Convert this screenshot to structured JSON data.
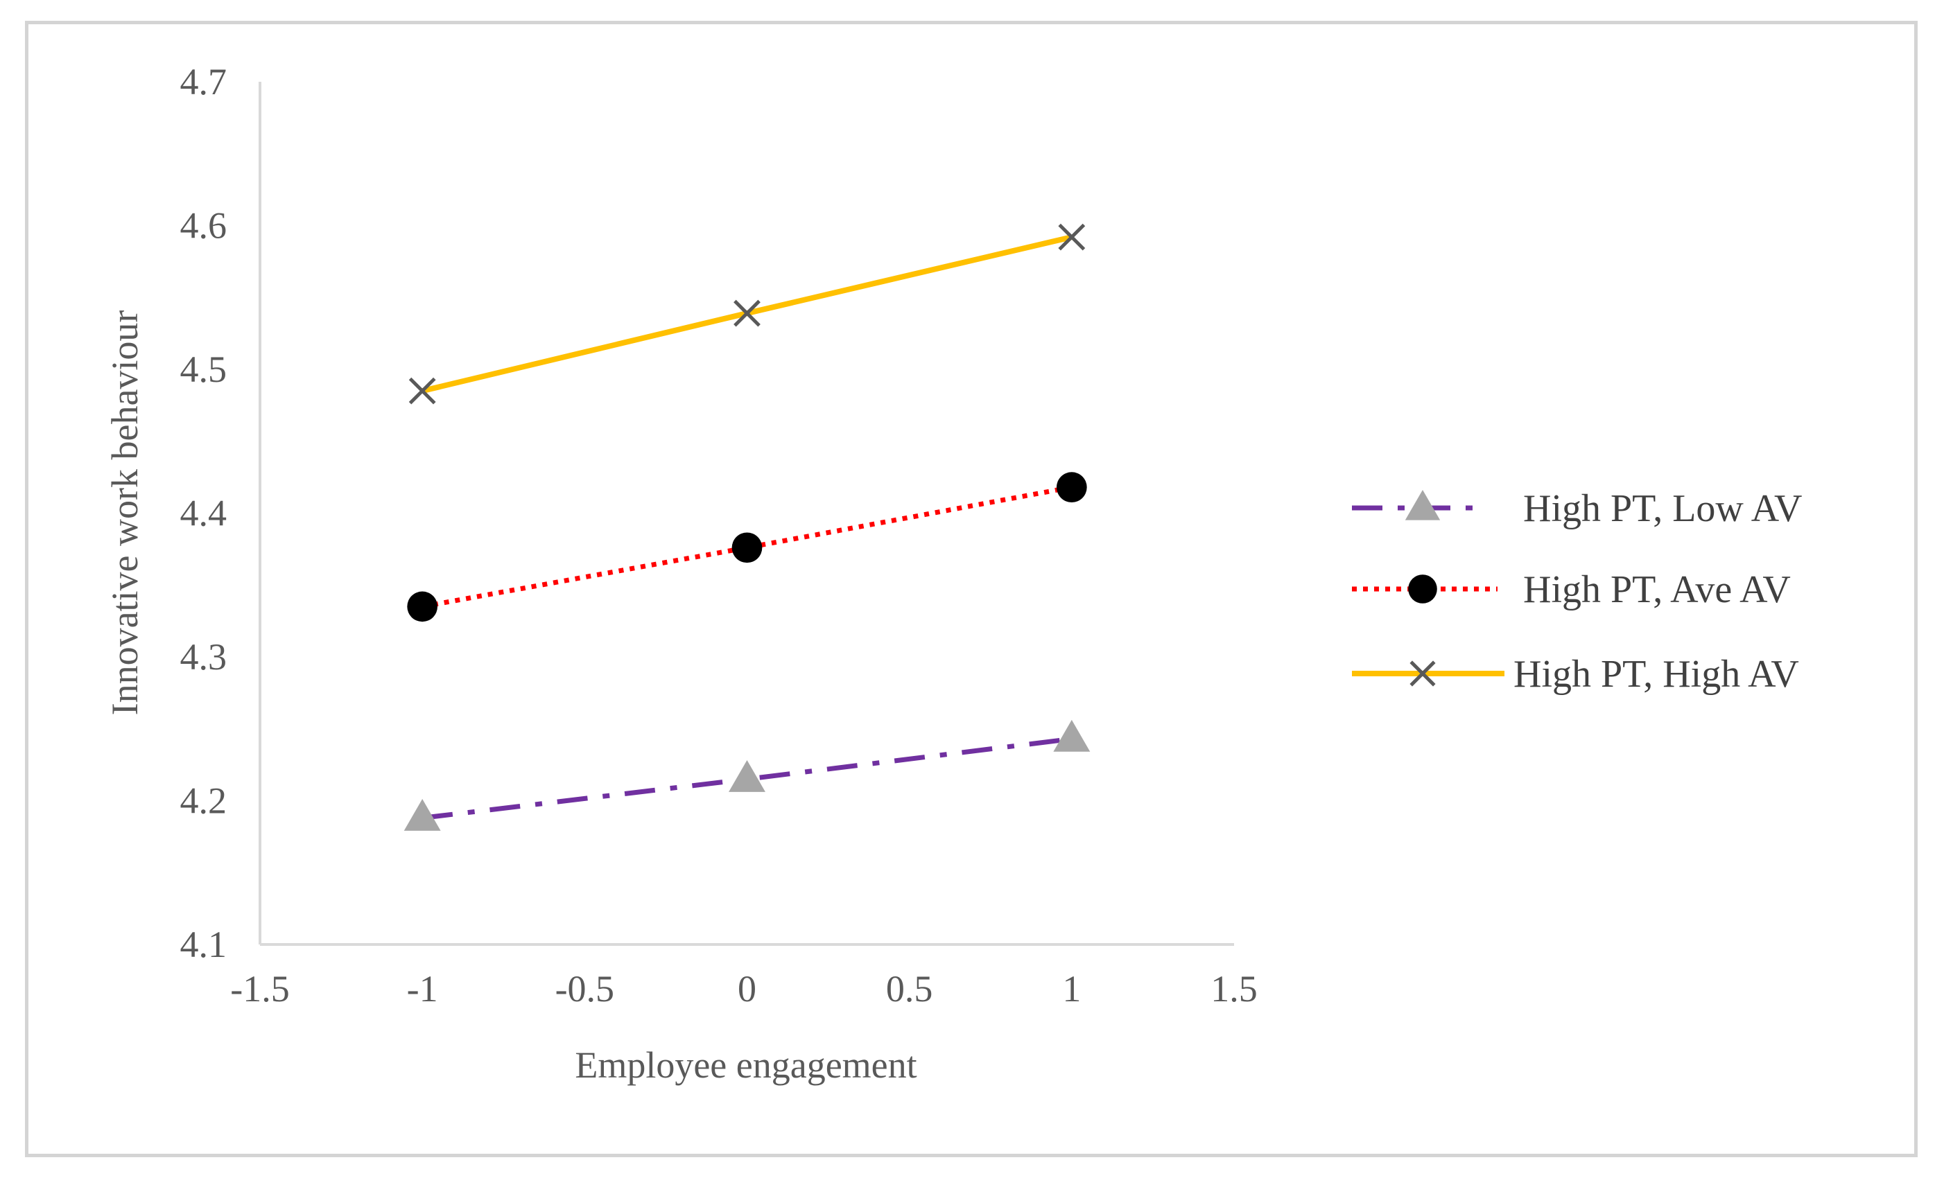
{
  "chart_data": {
    "type": "line",
    "title": "",
    "xlabel": "Employee engagement",
    "ylabel": "Innovative work behaviour",
    "xlim": [
      -1.5,
      1.5
    ],
    "ylim": [
      4.1,
      4.7
    ],
    "xticks": [
      "-1.5",
      "-1",
      "-0.5",
      "0",
      "0.5",
      "1",
      "1.5"
    ],
    "yticks": [
      "4.1",
      "4.2",
      "4.3",
      "4.4",
      "4.5",
      "4.6",
      "4.7"
    ],
    "x": [
      -1,
      0,
      1
    ],
    "grid": false,
    "legend_position": "right",
    "series": [
      {
        "name": "High PT, Low AV",
        "values": [
          4.188,
          4.215,
          4.243
        ],
        "line_color": "#7030a0",
        "marker_color": "#a6a6a6",
        "line_style": "dash-dot",
        "marker": "triangle"
      },
      {
        "name": "High PT, Ave AV",
        "values": [
          4.335,
          4.376,
          4.418
        ],
        "line_color": "#ff0000",
        "marker_color": "#000000",
        "line_style": "dotted",
        "marker": "circle"
      },
      {
        "name": "High PT, High AV",
        "values": [
          4.485,
          4.539,
          4.592
        ],
        "line_color": "#ffc000",
        "marker_color": "#595959",
        "line_style": "solid",
        "marker": "x"
      }
    ]
  }
}
